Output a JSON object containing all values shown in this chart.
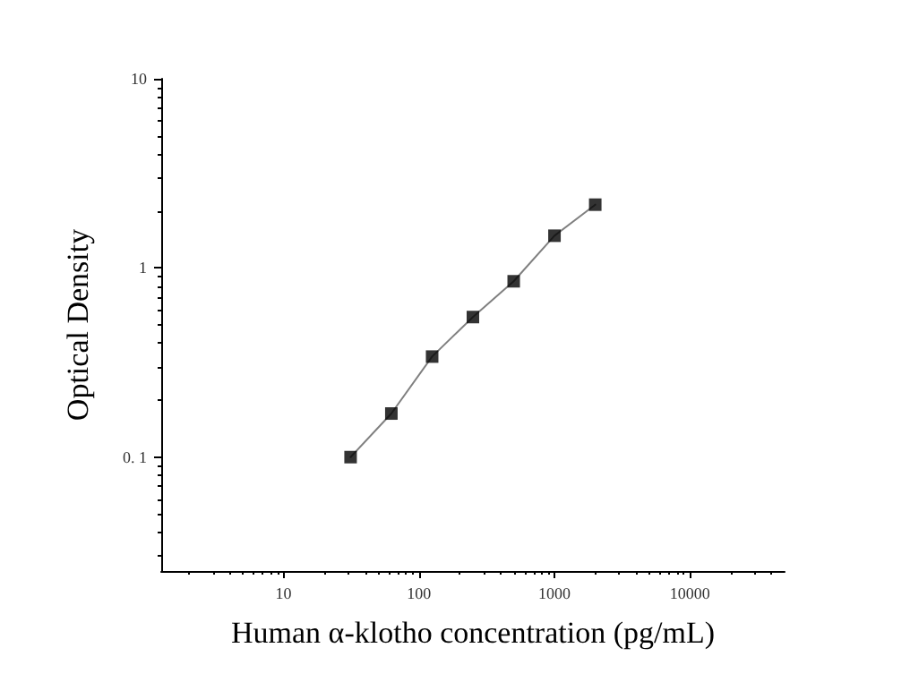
{
  "chart_data": {
    "type": "scatter",
    "xlabel": "Human α-klotho concentration (pg/mL)",
    "ylabel": "Optical Density",
    "log": "xy",
    "grid": false,
    "marker": "square",
    "xlim": [
      1.25,
      50000
    ],
    "xticks": [
      10,
      100,
      1000,
      10000
    ],
    "ylim": [
      0.025,
      10
    ],
    "yticks": [
      {
        "value": 0.1,
        "label": "0. 1"
      },
      1,
      10
    ],
    "series": [
      {
        "type": "line",
        "color": "#808080",
        "marker": "none",
        "line_style": "solid",
        "x": [
          31.25,
          62.5,
          125,
          250,
          500,
          1000,
          2000
        ],
        "values": [
          0.1,
          0.17,
          0.34,
          0.55,
          0.85,
          1.48,
          2.16
        ]
      },
      {
        "color": "#000000",
        "x": [
          31.25,
          62.5,
          125,
          250,
          500,
          1000,
          2000
        ],
        "values": [
          0.1,
          0.17,
          0.34,
          0.55,
          0.85,
          1.48,
          2.16
        ]
      }
    ]
  }
}
